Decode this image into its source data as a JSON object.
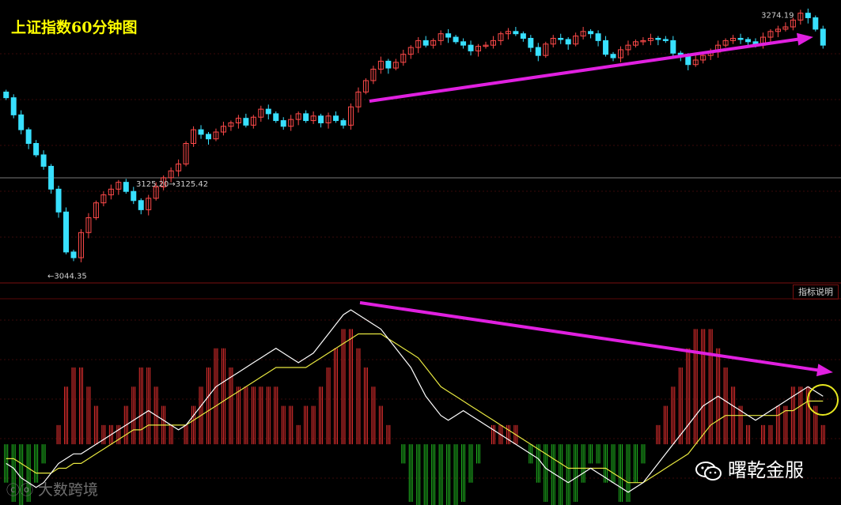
{
  "title": "上证指数60分钟图",
  "indicator_button": "指标说明",
  "annotations": {
    "high_label": "3274.19",
    "low_label": "←3044.35",
    "ref_label": "3125.20→3125.42"
  },
  "watermarks": {
    "left_text": "大数跨境",
    "right_text": "曙乾金服"
  },
  "colors": {
    "up": "#ff4a4a",
    "down": "#38e0ff",
    "dif_line": "#ffffff",
    "dea_line": "#e8e840",
    "arrow": "#e020e0",
    "circle": "#e8e820",
    "macd_pos": "#e83030",
    "macd_neg": "#20b820"
  },
  "chart_data": [
    {
      "type": "candlestick",
      "title": "上证指数60分钟图",
      "ylim": [
        3040,
        3280
      ],
      "high": 3274.19,
      "low": 3044.35,
      "reference": [
        3125.2,
        3125.42
      ],
      "close": [
        3200,
        3185,
        3172,
        3160,
        3150,
        3140,
        3120,
        3100,
        3065,
        3060,
        3082,
        3095,
        3108,
        3115,
        3120,
        3126,
        3118,
        3110,
        3102,
        3112,
        3122,
        3130,
        3136,
        3142,
        3160,
        3172,
        3168,
        3164,
        3170,
        3175,
        3178,
        3182,
        3176,
        3183,
        3190,
        3186,
        3180,
        3175,
        3181,
        3186,
        3180,
        3184,
        3178,
        3184,
        3180,
        3176,
        3192,
        3205,
        3215,
        3225,
        3232,
        3226,
        3231,
        3238,
        3244,
        3250,
        3246,
        3250,
        3256,
        3253,
        3249,
        3246,
        3241,
        3245,
        3246,
        3250,
        3256,
        3258,
        3256,
        3252,
        3244,
        3237,
        3247,
        3252,
        3251,
        3247,
        3254,
        3258,
        3256,
        3250,
        3238,
        3235,
        3242,
        3246,
        3249,
        3250,
        3252,
        3251,
        3250,
        3239,
        3236,
        3229,
        3233,
        3237,
        3240,
        3246,
        3250,
        3252,
        3251,
        3249,
        3246,
        3253,
        3258,
        3260,
        3262,
        3268,
        3274,
        3270,
        3260,
        3246
      ],
      "ma_annotation": "price rising while MACD falling (divergence)"
    },
    {
      "type": "line",
      "title": "",
      "series": [
        {
          "values": [
            -4,
            -5,
            -7,
            -8,
            -9,
            -8,
            -6,
            -4,
            -3,
            -2,
            -2,
            -1,
            0,
            1,
            2,
            3,
            4,
            5,
            6,
            7,
            6,
            5,
            4,
            3,
            4,
            6,
            8,
            10,
            12,
            13,
            14,
            15,
            16,
            17,
            18,
            19,
            20,
            19,
            18,
            17,
            18,
            19,
            21,
            23,
            25,
            27,
            28,
            27,
            26,
            25,
            24,
            22,
            20,
            18,
            16,
            13,
            10,
            8,
            6,
            5,
            6,
            7,
            6,
            5,
            4,
            3,
            2,
            1,
            0,
            -1,
            -2,
            -3,
            -5,
            -6,
            -7,
            -8,
            -7,
            -6,
            -5,
            -6,
            -7,
            -8,
            -9,
            -10,
            -9,
            -8,
            -6,
            -4,
            -2,
            0,
            2,
            4,
            6,
            8,
            9,
            10,
            9,
            8,
            7,
            6,
            5,
            6,
            7,
            8,
            9,
            10,
            11,
            12,
            11,
            10
          ]
        },
        {
          "values": [
            -3,
            -3,
            -4,
            -5,
            -6,
            -6,
            -6,
            -5,
            -5,
            -4,
            -4,
            -3,
            -2,
            -1,
            0,
            1,
            2,
            3,
            3,
            4,
            4,
            4,
            4,
            4,
            4,
            5,
            6,
            7,
            8,
            9,
            10,
            11,
            12,
            13,
            14,
            15,
            16,
            16,
            16,
            16,
            16,
            17,
            18,
            19,
            20,
            21,
            22,
            23,
            23,
            23,
            23,
            22,
            21,
            20,
            19,
            18,
            16,
            14,
            12,
            11,
            10,
            9,
            8,
            7,
            6,
            5,
            4,
            3,
            2,
            1,
            0,
            -1,
            -2,
            -3,
            -4,
            -5,
            -5,
            -5,
            -5,
            -5,
            -5,
            -6,
            -7,
            -8,
            -8,
            -8,
            -7,
            -6,
            -5,
            -4,
            -3,
            -2,
            0,
            2,
            4,
            5,
            6,
            6,
            6,
            6,
            6,
            6,
            6,
            6,
            7,
            7,
            8,
            9,
            9,
            9
          ]
        }
      ],
      "histogram": [
        -2,
        -3,
        -4,
        -3,
        -2,
        -1,
        0,
        1,
        3,
        4,
        4,
        3,
        2,
        1,
        1,
        1,
        2,
        3,
        4,
        4,
        3,
        2,
        1,
        0,
        1,
        2,
        3,
        4,
        5,
        5,
        4,
        3,
        3,
        3,
        3,
        3,
        3,
        2,
        2,
        1,
        2,
        2,
        3,
        4,
        5,
        6,
        6,
        5,
        4,
        3,
        2,
        1,
        0,
        -1,
        -3,
        -4,
        -5,
        -5,
        -5,
        -5,
        -4,
        -3,
        -2,
        -1,
        0,
        1,
        1,
        1,
        1,
        0,
        -1,
        -2,
        -3,
        -4,
        -4,
        -4,
        -3,
        -2,
        -1,
        -1,
        -2,
        -2,
        -3,
        -3,
        -2,
        -1,
        0,
        1,
        2,
        3,
        4,
        5,
        6,
        6,
        6,
        5,
        4,
        3,
        2,
        1,
        0,
        1,
        1,
        2,
        2,
        3,
        3,
        3,
        2,
        1
      ],
      "ylim": [
        -12,
        30
      ]
    }
  ]
}
